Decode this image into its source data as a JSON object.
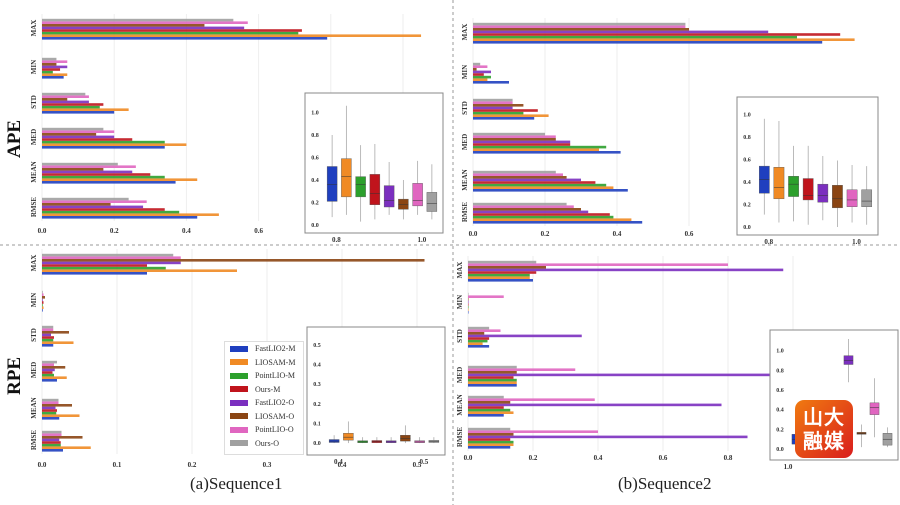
{
  "figure": {
    "caption_a": "(a)Sequence1",
    "caption_b": "(b)Sequence2",
    "row_ape": "APE",
    "row_rpe": "RPE",
    "watermark": "山大融媒"
  },
  "legend": [
    {
      "name": "FastLIO2-M",
      "color": "#1f3fbf"
    },
    {
      "name": "LIOSAM-M",
      "color": "#f08a24"
    },
    {
      "name": "PointLIO-M",
      "color": "#2ca02c"
    },
    {
      "name": "Ours-M",
      "color": "#c0141c"
    },
    {
      "name": "FastLIO2-O",
      "color": "#7b2fbf"
    },
    {
      "name": "LIOSAM-O",
      "color": "#8b4513"
    },
    {
      "name": "PointLIO-O",
      "color": "#e066c0"
    },
    {
      "name": "Ours-O",
      "color": "#a0a0a0"
    }
  ],
  "chart_data": [
    {
      "id": "ape-seq1",
      "type": "bar",
      "orientation": "horizontal",
      "categories": [
        "MAX",
        "MIN",
        "STD",
        "MED",
        "MEAN",
        "RMSE"
      ],
      "xticks": [
        "0.0",
        "0.2",
        "0.4",
        "0.6",
        "0.8",
        "1.0"
      ],
      "xlim": [
        0,
        1.1
      ],
      "grid": true,
      "series": [
        {
          "name": "FastLIO2-M",
          "values": [
            0.79,
            0.06,
            0.2,
            0.34,
            0.37,
            0.43
          ]
        },
        {
          "name": "LIOSAM-M",
          "values": [
            1.05,
            0.07,
            0.24,
            0.4,
            0.43,
            0.49
          ]
        },
        {
          "name": "PointLIO-M",
          "values": [
            0.71,
            0.03,
            0.16,
            0.34,
            0.34,
            0.38
          ]
        },
        {
          "name": "Ours-M",
          "values": [
            0.72,
            0.05,
            0.17,
            0.25,
            0.3,
            0.34
          ]
        },
        {
          "name": "FastLIO2-O",
          "values": [
            0.56,
            0.07,
            0.13,
            0.2,
            0.25,
            0.28
          ]
        },
        {
          "name": "LIOSAM-O",
          "values": [
            0.45,
            0.04,
            0.07,
            0.15,
            0.17,
            0.19
          ]
        },
        {
          "name": "PointLIO-O",
          "values": [
            0.57,
            0.07,
            0.13,
            0.2,
            0.26,
            0.29
          ]
        },
        {
          "name": "Ours-O",
          "values": [
            0.53,
            0.04,
            0.12,
            0.17,
            0.21,
            0.24
          ]
        }
      ],
      "inset": {
        "type": "box",
        "yticks": [
          "0.0",
          "0.2",
          "0.4",
          "0.6",
          "0.8",
          "1.0"
        ],
        "ylim": [
          0,
          1.12
        ],
        "xticks": [
          "0.8",
          "1.0"
        ],
        "boxes": [
          [
            0.07,
            0.21,
            0.36,
            0.52,
            0.8
          ],
          [
            0.09,
            0.25,
            0.43,
            0.59,
            1.06
          ],
          [
            0.03,
            0.25,
            0.36,
            0.43,
            0.71
          ],
          [
            0.05,
            0.18,
            0.28,
            0.45,
            0.72
          ],
          [
            0.09,
            0.16,
            0.22,
            0.35,
            0.56
          ],
          [
            0.05,
            0.14,
            0.18,
            0.23,
            0.4
          ],
          [
            0.09,
            0.17,
            0.22,
            0.37,
            0.57
          ],
          [
            0.05,
            0.12,
            0.19,
            0.29,
            0.54
          ]
        ]
      }
    },
    {
      "id": "ape-seq2",
      "type": "bar",
      "orientation": "horizontal",
      "categories": [
        "MAX",
        "MIN",
        "STD",
        "MED",
        "MEAN",
        "RMSE"
      ],
      "xticks": [
        "0.0",
        "0.2",
        "0.4",
        "0.6"
      ],
      "xlim": [
        0,
        1.1
      ],
      "grid": true,
      "series": [
        {
          "name": "FastLIO2-M",
          "values": [
            0.97,
            0.1,
            0.17,
            0.41,
            0.43,
            0.47
          ]
        },
        {
          "name": "LIOSAM-M",
          "values": [
            1.06,
            0.04,
            0.21,
            0.35,
            0.39,
            0.44
          ]
        },
        {
          "name": "PointLIO-M",
          "values": [
            0.9,
            0.05,
            0.14,
            0.37,
            0.37,
            0.39
          ]
        },
        {
          "name": "Ours-M",
          "values": [
            1.02,
            0.03,
            0.18,
            0.27,
            0.34,
            0.38
          ]
        },
        {
          "name": "FastLIO2-O",
          "values": [
            0.82,
            0.05,
            0.11,
            0.27,
            0.3,
            0.32
          ]
        },
        {
          "name": "LIOSAM-O",
          "values": [
            0.6,
            0.01,
            0.14,
            0.23,
            0.26,
            0.3
          ]
        },
        {
          "name": "PointLIO-O",
          "values": [
            0.59,
            0.04,
            0.11,
            0.23,
            0.25,
            0.28
          ]
        },
        {
          "name": "Ours-O",
          "values": [
            0.59,
            0.02,
            0.11,
            0.2,
            0.23,
            0.26
          ]
        }
      ],
      "inset": {
        "type": "box",
        "yticks": [
          "0.0",
          "0.2",
          "0.4",
          "0.6",
          "0.8",
          "1.0"
        ],
        "ylim": [
          0,
          1.1
        ],
        "xticks": [
          "0.8",
          "1.0"
        ],
        "boxes": [
          [
            0.11,
            0.3,
            0.42,
            0.54,
            0.96
          ],
          [
            0.04,
            0.25,
            0.35,
            0.53,
            0.94
          ],
          [
            0.05,
            0.27,
            0.38,
            0.45,
            0.72
          ],
          [
            0.02,
            0.24,
            0.28,
            0.43,
            0.72
          ],
          [
            0.06,
            0.22,
            0.28,
            0.38,
            0.63
          ],
          [
            0.0,
            0.17,
            0.25,
            0.37,
            0.59
          ],
          [
            0.04,
            0.18,
            0.24,
            0.33,
            0.55
          ],
          [
            0.02,
            0.18,
            0.23,
            0.33,
            0.54
          ]
        ]
      }
    },
    {
      "id": "rpe-seq1",
      "type": "bar",
      "orientation": "horizontal",
      "categories": [
        "MAX",
        "MIN",
        "STD",
        "MED",
        "MEAN",
        "RMSE"
      ],
      "xticks": [
        "0.0",
        "0.1",
        "0.2",
        "0.3",
        "0.4",
        "0.5"
      ],
      "xlim": [
        0,
        0.54
      ],
      "grid": true,
      "series": [
        {
          "name": "FastLIO2-M",
          "values": [
            0.14,
            0.001,
            0.015,
            0.02,
            0.023,
            0.028
          ]
        },
        {
          "name": "LIOSAM-M",
          "values": [
            0.26,
            0.002,
            0.042,
            0.033,
            0.05,
            0.065
          ]
        },
        {
          "name": "PointLIO-M",
          "values": [
            0.165,
            0.001,
            0.015,
            0.016,
            0.019,
            0.025
          ]
        },
        {
          "name": "Ours-M",
          "values": [
            0.14,
            0.002,
            0.016,
            0.014,
            0.02,
            0.025
          ]
        },
        {
          "name": "FastLIO2-O",
          "values": [
            0.185,
            0.001,
            0.012,
            0.017,
            0.018,
            0.023
          ]
        },
        {
          "name": "LIOSAM-O",
          "values": [
            0.51,
            0.004,
            0.036,
            0.031,
            0.04,
            0.054
          ]
        },
        {
          "name": "PointLIO-O",
          "values": [
            0.185,
            0.002,
            0.015,
            0.016,
            0.022,
            0.026
          ]
        },
        {
          "name": "Ours-O",
          "values": [
            0.175,
            0.001,
            0.015,
            0.02,
            0.022,
            0.026
          ]
        }
      ],
      "inset": {
        "type": "box",
        "yticks": [
          "0.0",
          "0.1",
          "0.2",
          "0.3",
          "0.4",
          "0.5"
        ],
        "ylim": [
          -0.02,
          0.56
        ],
        "xticks": [
          "0.4",
          "0.5"
        ],
        "boxes": [
          [
            0,
            0.003,
            0.01,
            0.018,
            0.04
          ],
          [
            0,
            0.015,
            0.03,
            0.05,
            0.11
          ],
          [
            0,
            0.002,
            0.006,
            0.012,
            0.03
          ],
          [
            0,
            0.002,
            0.007,
            0.013,
            0.03
          ],
          [
            0,
            0.002,
            0.006,
            0.012,
            0.03
          ],
          [
            0,
            0.01,
            0.022,
            0.04,
            0.09
          ],
          [
            0,
            0.002,
            0.006,
            0.012,
            0.03
          ],
          [
            0,
            0.003,
            0.008,
            0.014,
            0.03
          ]
        ]
      }
    },
    {
      "id": "rpe-seq2",
      "type": "bar",
      "orientation": "horizontal",
      "categories": [
        "MAX",
        "MIN",
        "STD",
        "MED",
        "MEAN",
        "RMSE"
      ],
      "xticks": [
        "0.0",
        "0.2",
        "0.4",
        "0.6",
        "0.8",
        "1.0"
      ],
      "xlim": [
        0,
        1.1
      ],
      "grid": true,
      "series": [
        {
          "name": "FastLIO2-M",
          "values": [
            0.2,
            0.0,
            0.065,
            0.15,
            0.11,
            0.13
          ]
        },
        {
          "name": "LIOSAM-M",
          "values": [
            0.19,
            0.0,
            0.045,
            0.15,
            0.14,
            0.14
          ]
        },
        {
          "name": "PointLIO-M",
          "values": [
            0.19,
            0.0,
            0.06,
            0.15,
            0.13,
            0.14
          ]
        },
        {
          "name": "Ours-M",
          "values": [
            0.21,
            0.0,
            0.065,
            0.14,
            0.11,
            0.13
          ]
        },
        {
          "name": "FastLIO2-O",
          "values": [
            0.97,
            0.0,
            0.35,
            0.94,
            0.78,
            0.86
          ]
        },
        {
          "name": "LIOSAM-O",
          "values": [
            0.24,
            0.0,
            0.05,
            0.15,
            0.13,
            0.14
          ]
        },
        {
          "name": "PointLIO-O",
          "values": [
            0.8,
            0.11,
            0.1,
            0.33,
            0.39,
            0.4
          ]
        },
        {
          "name": "Ours-O",
          "values": [
            0.21,
            0.0,
            0.065,
            0.15,
            0.11,
            0.13
          ]
        }
      ],
      "inset": {
        "type": "box",
        "yticks": [
          "0.0",
          "0.2",
          "0.4",
          "0.6",
          "0.8",
          "1.0"
        ],
        "ylim": [
          -0.03,
          1.15
        ],
        "xticks": [
          "1.0"
        ],
        "boxes": [
          [
            0,
            0.05,
            0.1,
            0.15,
            0.22
          ],
          [
            0,
            0.05,
            0.1,
            0.15,
            0.22
          ],
          [
            0,
            0.05,
            0.1,
            0.15,
            0.22
          ],
          [
            0,
            0.05,
            0.1,
            0.15,
            0.22
          ],
          [
            0.68,
            0.86,
            0.9,
            0.95,
            1.12
          ],
          [
            0.02,
            0.15,
            0.16,
            0.17,
            0.25
          ],
          [
            0.12,
            0.35,
            0.42,
            0.47,
            0.72
          ],
          [
            0.02,
            0.04,
            0.1,
            0.16,
            0.22
          ]
        ]
      }
    }
  ]
}
